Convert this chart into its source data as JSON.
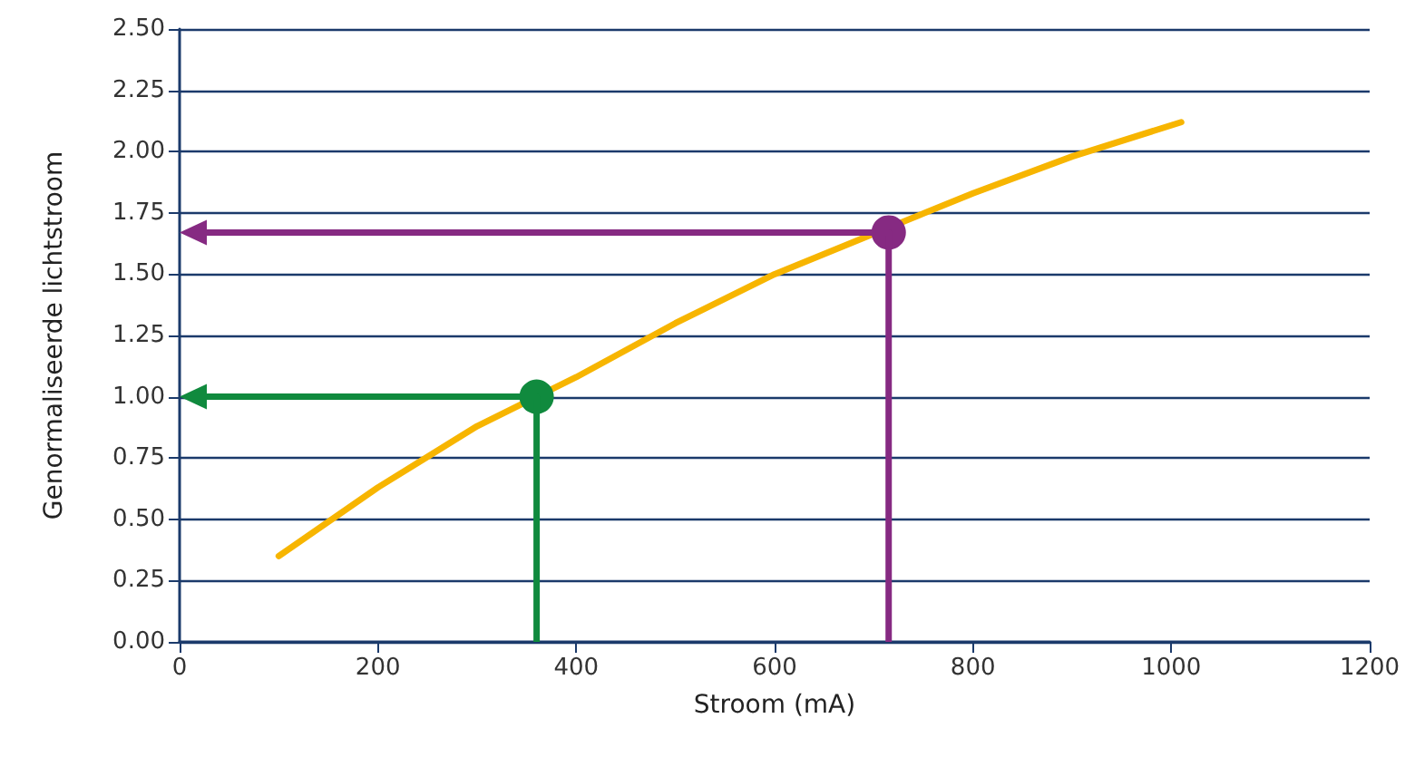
{
  "chart_data": {
    "type": "line",
    "xlabel": "Stroom (mA)",
    "ylabel": "Genormaliseerde lichtstroom",
    "xlim": [
      0,
      1200
    ],
    "xticks": [
      0,
      200,
      400,
      600,
      800,
      {
        "value": 1000,
        "label": "1000"
      },
      {
        "value": 1200,
        "label": "1200"
      }
    ],
    "ylim": [
      0,
      2.5
    ],
    "yticks": [
      {
        "value": 0,
        "label": "0.00"
      },
      0.25,
      {
        "value": 0.5,
        "label": "0.50"
      },
      0.75,
      {
        "value": 1.0,
        "label": "1.00"
      },
      1.25,
      {
        "value": 1.5,
        "label": "1.50"
      },
      1.75,
      {
        "value": 2.0,
        "label": "2.00"
      },
      2.25,
      {
        "value": 2.5,
        "label": "2.50"
      }
    ],
    "grid": "y",
    "marker": "none",
    "line_style": "solid",
    "series": [
      {
        "color": "#f7b500",
        "x": [
          100,
          200,
          300,
          400,
          500,
          600,
          800,
          900,
          1010
        ],
        "values": [
          0.35,
          0.63,
          0.88,
          1.08,
          1.3,
          1.5,
          1.83,
          1.98,
          2.12
        ]
      },
      {
        "type": "scatter",
        "color": "#108a3e",
        "marker": "circle",
        "x": [
          360
        ],
        "values": [
          1.0
        ]
      },
      {
        "type": "scatter",
        "color": "#862a82",
        "marker": "circle",
        "x": [
          715
        ],
        "values": [
          1.67
        ]
      }
    ]
  }
}
